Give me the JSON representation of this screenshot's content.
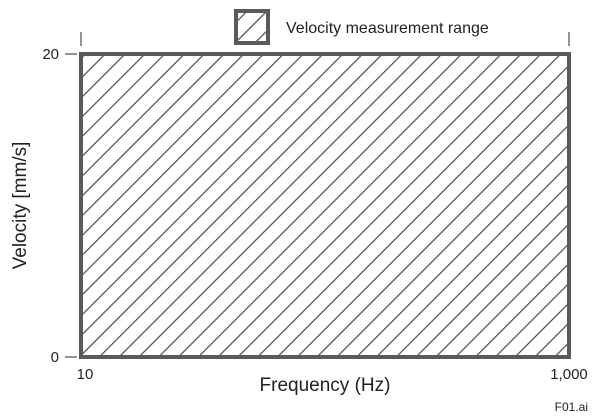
{
  "chart_data": {
    "type": "area",
    "title": "",
    "xlabel": "Frequency (Hz)",
    "ylabel": "Velocity [mm/s]",
    "x_scale": "log",
    "xlim": [
      10,
      1000
    ],
    "ylim": [
      0,
      20
    ],
    "x_ticks": [
      {
        "value": 10,
        "label": "10"
      },
      {
        "value": 1000,
        "label": "1,000"
      }
    ],
    "y_ticks": [
      {
        "value": 0,
        "label": "0"
      },
      {
        "value": 20,
        "label": "20"
      }
    ],
    "regions": [
      {
        "name": "Velocity measurement range",
        "x": [
          10,
          1000
        ],
        "y": [
          0,
          20
        ],
        "fill": "diagonal-hatch"
      }
    ],
    "grid": false,
    "legend": {
      "placement": "top-right",
      "entries": [
        "Velocity measurement range"
      ]
    },
    "colors": {
      "frame": "#5a5a5a",
      "hatch": "#4a4a4a",
      "text": "#222222"
    }
  },
  "figure_id": "F01.ai"
}
